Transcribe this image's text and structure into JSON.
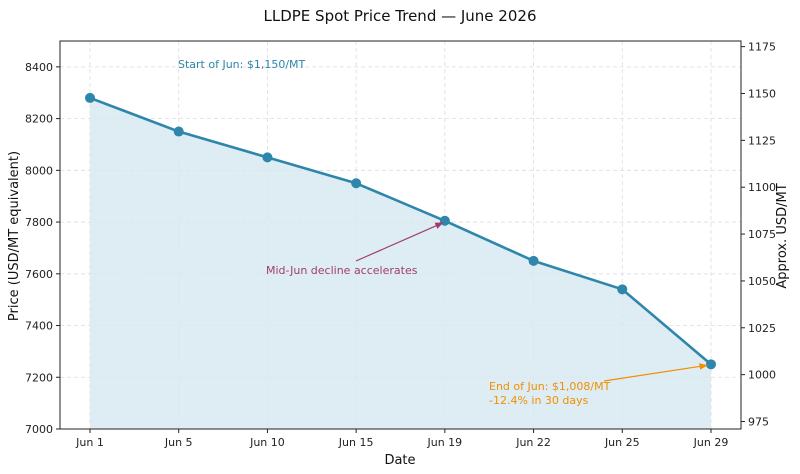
{
  "chart_data": {
    "type": "line",
    "title": "LLDPE Spot Price Trend — June 2026",
    "xlabel": "Date",
    "ylabel": "Price (USD/MT equivalent)",
    "ylabel_right": "Approx. USD/MT",
    "categories": [
      "Jun 1",
      "Jun 5",
      "Jun 10",
      "Jun 15",
      "Jun 19",
      "Jun 22",
      "Jun 25",
      "Jun 29"
    ],
    "values": [
      8280,
      8150,
      8050,
      7950,
      7805,
      7650,
      7540,
      7250
    ],
    "ylim": [
      7000,
      8500
    ],
    "yticks": [
      7000,
      7200,
      7400,
      7600,
      7800,
      8000,
      8200,
      8400
    ],
    "y2lim": [
      971,
      1178
    ],
    "y2ticks": [
      975,
      1000,
      1025,
      1050,
      1075,
      1100,
      1125,
      1150,
      1175
    ],
    "grid": true,
    "area_fill": true,
    "colors": {
      "line": "#2e86ab",
      "fill": "#d6e8f0",
      "annotation_start": "#2e86ab",
      "annotation_mid": "#a23b72",
      "annotation_end": "#f18f01"
    },
    "annotations": [
      {
        "id": "start",
        "text": "Start of Jun: $1,150/MT",
        "target_index": null
      },
      {
        "id": "mid",
        "text": "Mid-Jun decline accelerates",
        "target_index": 4
      },
      {
        "id": "end",
        "lines": [
          "End of Jun: $1,008/MT",
          "-12.4% in 30 days"
        ],
        "target_index": 7
      }
    ]
  }
}
